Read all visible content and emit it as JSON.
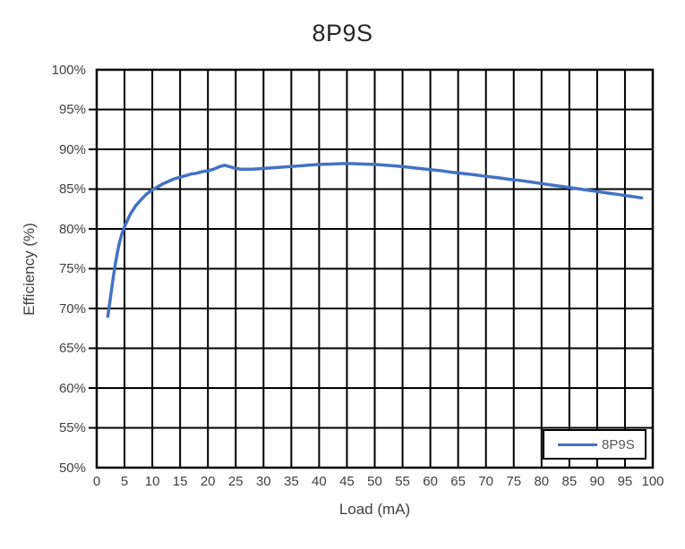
{
  "chart_data": {
    "type": "line",
    "title": "8P9S",
    "xlabel": "Load (mA)",
    "ylabel": "Efficiency (%)",
    "xlim": [
      0,
      100
    ],
    "ylim": [
      50,
      100
    ],
    "x_tick_labels": [
      "0",
      "5",
      "10",
      "15",
      "20",
      "25",
      "30",
      "35",
      "40",
      "45",
      "50",
      "55",
      "60",
      "65",
      "70",
      "75",
      "80",
      "85",
      "90",
      "95",
      "100"
    ],
    "y_tick_labels": [
      "100%",
      "95%",
      "90%",
      "85%",
      "80%",
      "75%",
      "70%",
      "65%",
      "60%",
      "55%",
      "50%"
    ],
    "grid": true,
    "legend": {
      "position": "bottom-right",
      "entries": [
        {
          "label": "8P9S",
          "color": "#4472C4"
        }
      ]
    },
    "colors": {
      "line": "#4472C4",
      "grid": "#000000",
      "axis_text": "#404040",
      "title_text": "#262626",
      "legend_text": "#595959",
      "background": "#ffffff"
    },
    "series": [
      {
        "name": "8P9S",
        "color": "#4472C4",
        "points": [
          [
            2,
            69.0
          ],
          [
            2.5,
            71.5
          ],
          [
            3,
            74.0
          ],
          [
            3.5,
            76.2
          ],
          [
            4,
            78.0
          ],
          [
            4.5,
            79.3
          ],
          [
            5,
            80.3
          ],
          [
            6,
            81.8
          ],
          [
            7,
            82.9
          ],
          [
            8,
            83.7
          ],
          [
            9,
            84.4
          ],
          [
            10,
            84.9
          ],
          [
            11,
            85.3
          ],
          [
            12,
            85.7
          ],
          [
            13,
            86.0
          ],
          [
            14,
            86.3
          ],
          [
            15,
            86.5
          ],
          [
            16,
            86.7
          ],
          [
            17,
            86.9
          ],
          [
            18,
            87.0
          ],
          [
            19,
            87.2
          ],
          [
            20,
            87.3
          ],
          [
            21,
            87.5
          ],
          [
            22,
            87.8
          ],
          [
            23,
            88.0
          ],
          [
            24,
            87.8
          ],
          [
            25,
            87.6
          ],
          [
            26,
            87.5
          ],
          [
            28,
            87.5
          ],
          [
            30,
            87.6
          ],
          [
            32,
            87.7
          ],
          [
            34,
            87.8
          ],
          [
            36,
            87.9
          ],
          [
            38,
            88.0
          ],
          [
            40,
            88.1
          ],
          [
            42,
            88.15
          ],
          [
            44,
            88.2
          ],
          [
            46,
            88.2
          ],
          [
            48,
            88.15
          ],
          [
            50,
            88.1
          ],
          [
            52,
            88.0
          ],
          [
            54,
            87.9
          ],
          [
            56,
            87.75
          ],
          [
            58,
            87.6
          ],
          [
            60,
            87.45
          ],
          [
            62,
            87.3
          ],
          [
            64,
            87.1
          ],
          [
            66,
            86.95
          ],
          [
            68,
            86.8
          ],
          [
            70,
            86.6
          ],
          [
            72,
            86.45
          ],
          [
            74,
            86.25
          ],
          [
            76,
            86.1
          ],
          [
            78,
            85.9
          ],
          [
            80,
            85.7
          ],
          [
            82,
            85.5
          ],
          [
            84,
            85.3
          ],
          [
            86,
            85.1
          ],
          [
            88,
            84.9
          ],
          [
            90,
            84.7
          ],
          [
            92,
            84.5
          ],
          [
            94,
            84.3
          ],
          [
            96,
            84.1
          ],
          [
            98,
            83.9
          ]
        ]
      }
    ]
  }
}
